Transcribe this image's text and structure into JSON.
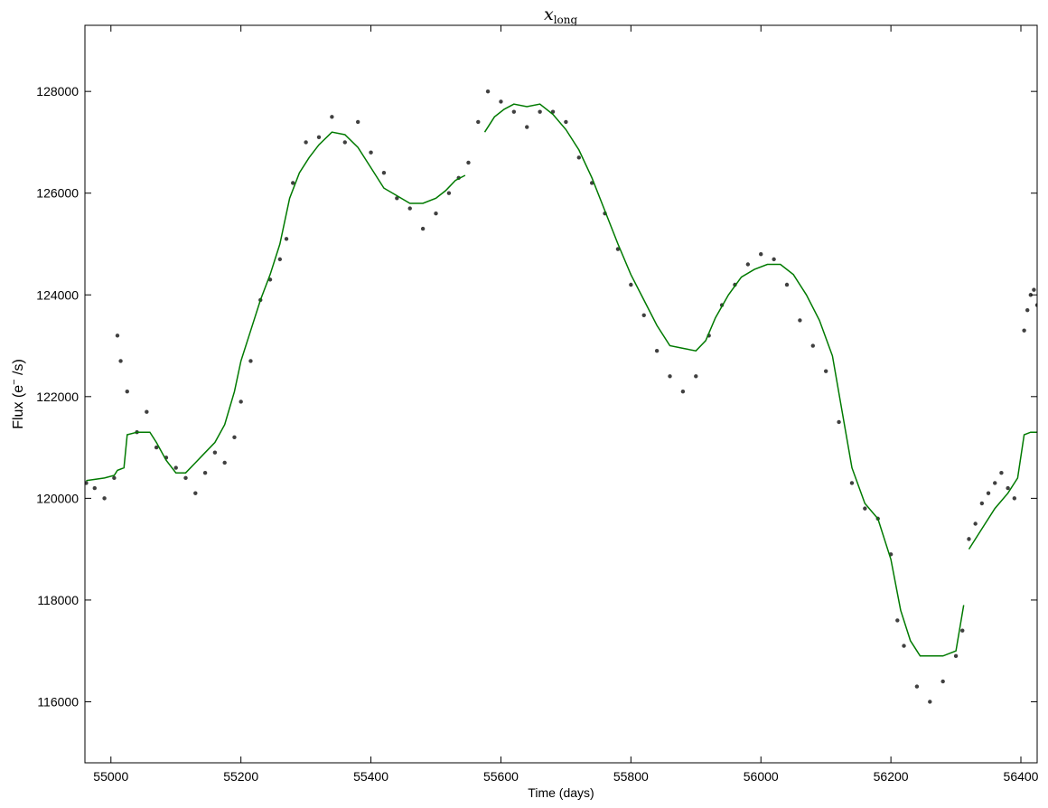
{
  "chart_data": {
    "type": "scatter",
    "title_main": "x",
    "title_sub": "long",
    "xlabel": "Time (days)",
    "ylabel_prefix": "Flux (e",
    "ylabel_sup": "−",
    "ylabel_suffix": " /s)",
    "xlim": [
      54960,
      56425
    ],
    "ylim": [
      114800,
      129300
    ],
    "xticks": [
      55000,
      55200,
      55400,
      55600,
      55800,
      56000,
      56200,
      56400
    ],
    "xtick_labels": [
      "55000",
      "55200",
      "55400",
      "55600",
      "55800",
      "56000",
      "56200",
      "56400"
    ],
    "yticks": [
      116000,
      118000,
      120000,
      122000,
      124000,
      126000,
      128000
    ],
    "ytick_labels": [
      "116000",
      "118000",
      "120000",
      "122000",
      "124000",
      "126000",
      "128000"
    ],
    "grid": false,
    "colors": {
      "points": "#000000",
      "trend": "#007a00",
      "axes": "#000000"
    },
    "series": [
      {
        "role": "observed",
        "style": "points",
        "segments": [
          {
            "x": [
              54962,
              54975,
              54990,
              55005,
              55010,
              55015,
              55025,
              55040,
              55055,
              55070,
              55085,
              55100,
              55115,
              55130,
              55145,
              55160,
              55175,
              55190,
              55200,
              55215,
              55230,
              55245,
              55260,
              55270,
              55280,
              55300,
              55320,
              55340,
              55360,
              55380,
              55400,
              55420,
              55440,
              55460,
              55480,
              55500,
              55520,
              55535,
              55550,
              55565,
              55580,
              55600,
              55620,
              55640,
              55660,
              55680,
              55700,
              55720,
              55740,
              55760,
              55780,
              55800,
              55820,
              55840,
              55860,
              55880,
              55900,
              55920,
              55940,
              55960,
              55980,
              56000,
              56020,
              56040,
              56060,
              56080,
              56100,
              56120,
              56140,
              56160,
              56180,
              56200,
              56210,
              56220,
              56240,
              56260,
              56280,
              56300,
              56310
            ],
            "y": [
              120300,
              120200,
              120000,
              120400,
              123200,
              122700,
              122100,
              121300,
              121700,
              121000,
              120800,
              120600,
              120400,
              120100,
              120500,
              120900,
              120700,
              121200,
              121900,
              122700,
              123900,
              124300,
              124700,
              125100,
              126200,
              127000,
              127100,
              127500,
              127000,
              127400,
              126800,
              126400,
              125900,
              125700,
              125300,
              125600,
              126000,
              126300,
              126600,
              127400,
              128000,
              127800,
              127600,
              127300,
              127600,
              127600,
              127400,
              126700,
              126200,
              125600,
              124900,
              124200,
              123600,
              122900,
              122400,
              122100,
              122400,
              123200,
              123800,
              124200,
              124600,
              124800,
              124700,
              124200,
              123500,
              123000,
              122500,
              121500,
              120300,
              119800,
              119600,
              118900,
              117600,
              117100,
              116300,
              116000,
              116400,
              116900,
              117400
            ]
          },
          {
            "x": [
              56320,
              56330,
              56340,
              56350,
              56360,
              56370,
              56380,
              56390
            ],
            "y": [
              119200,
              119500,
              119900,
              120100,
              120300,
              120500,
              120200,
              120000
            ]
          },
          {
            "x": [
              56405,
              56410,
              56415,
              56420,
              56425
            ],
            "y": [
              123300,
              123700,
              124000,
              124100,
              123800
            ]
          }
        ]
      },
      {
        "role": "trend",
        "style": "line",
        "segments": [
          {
            "x": [
              54962,
              54990,
              55005,
              55010,
              55020,
              55025,
              55040,
              55060,
              55070,
              55085,
              55100,
              55115,
              55130,
              55145,
              55160,
              55175,
              55190,
              55200,
              55215,
              55230,
              55245,
              55260,
              55275,
              55290,
              55305,
              55320,
              55340,
              55360,
              55380,
              55400,
              55420,
              55440,
              55460,
              55480,
              55500,
              55515,
              55530,
              55545
            ],
            "y": [
              120350,
              120400,
              120450,
              120550,
              120600,
              121250,
              121300,
              121300,
              121100,
              120750,
              120500,
              120500,
              120700,
              120900,
              121100,
              121450,
              122100,
              122700,
              123300,
              123900,
              124400,
              125000,
              125900,
              126400,
              126700,
              126950,
              127200,
              127150,
              126900,
              126500,
              126100,
              125950,
              125800,
              125800,
              125900,
              126050,
              126250,
              126350
            ]
          },
          {
            "x": [
              55575,
              55590,
              55605,
              55620,
              55640,
              55660,
              55680,
              55700,
              55720,
              55740,
              55760,
              55780,
              55800,
              55820,
              55840,
              55860,
              55880,
              55900,
              55915,
              55930,
              55950,
              55970,
              55990,
              56010,
              56030,
              56050,
              56070,
              56090,
              56110,
              56125,
              56140,
              56160,
              56180,
              56200,
              56215,
              56230,
              56245,
              56260,
              56280,
              56300,
              56312
            ],
            "y": [
              127200,
              127500,
              127650,
              127750,
              127700,
              127750,
              127550,
              127250,
              126850,
              126300,
              125650,
              125000,
              124400,
              123900,
              123400,
              123000,
              122950,
              122900,
              123100,
              123550,
              124000,
              124350,
              124500,
              124600,
              124600,
              124400,
              124000,
              123500,
              122800,
              121700,
              120600,
              119900,
              119600,
              118800,
              117800,
              117200,
              116900,
              116900,
              116900,
              117000,
              117900
            ]
          },
          {
            "x": [
              56320,
              56340,
              56360,
              56380,
              56395,
              56405,
              56415,
              56425
            ],
            "y": [
              119000,
              119400,
              119800,
              120100,
              120400,
              121250,
              121300,
              121300
            ]
          }
        ]
      }
    ]
  }
}
